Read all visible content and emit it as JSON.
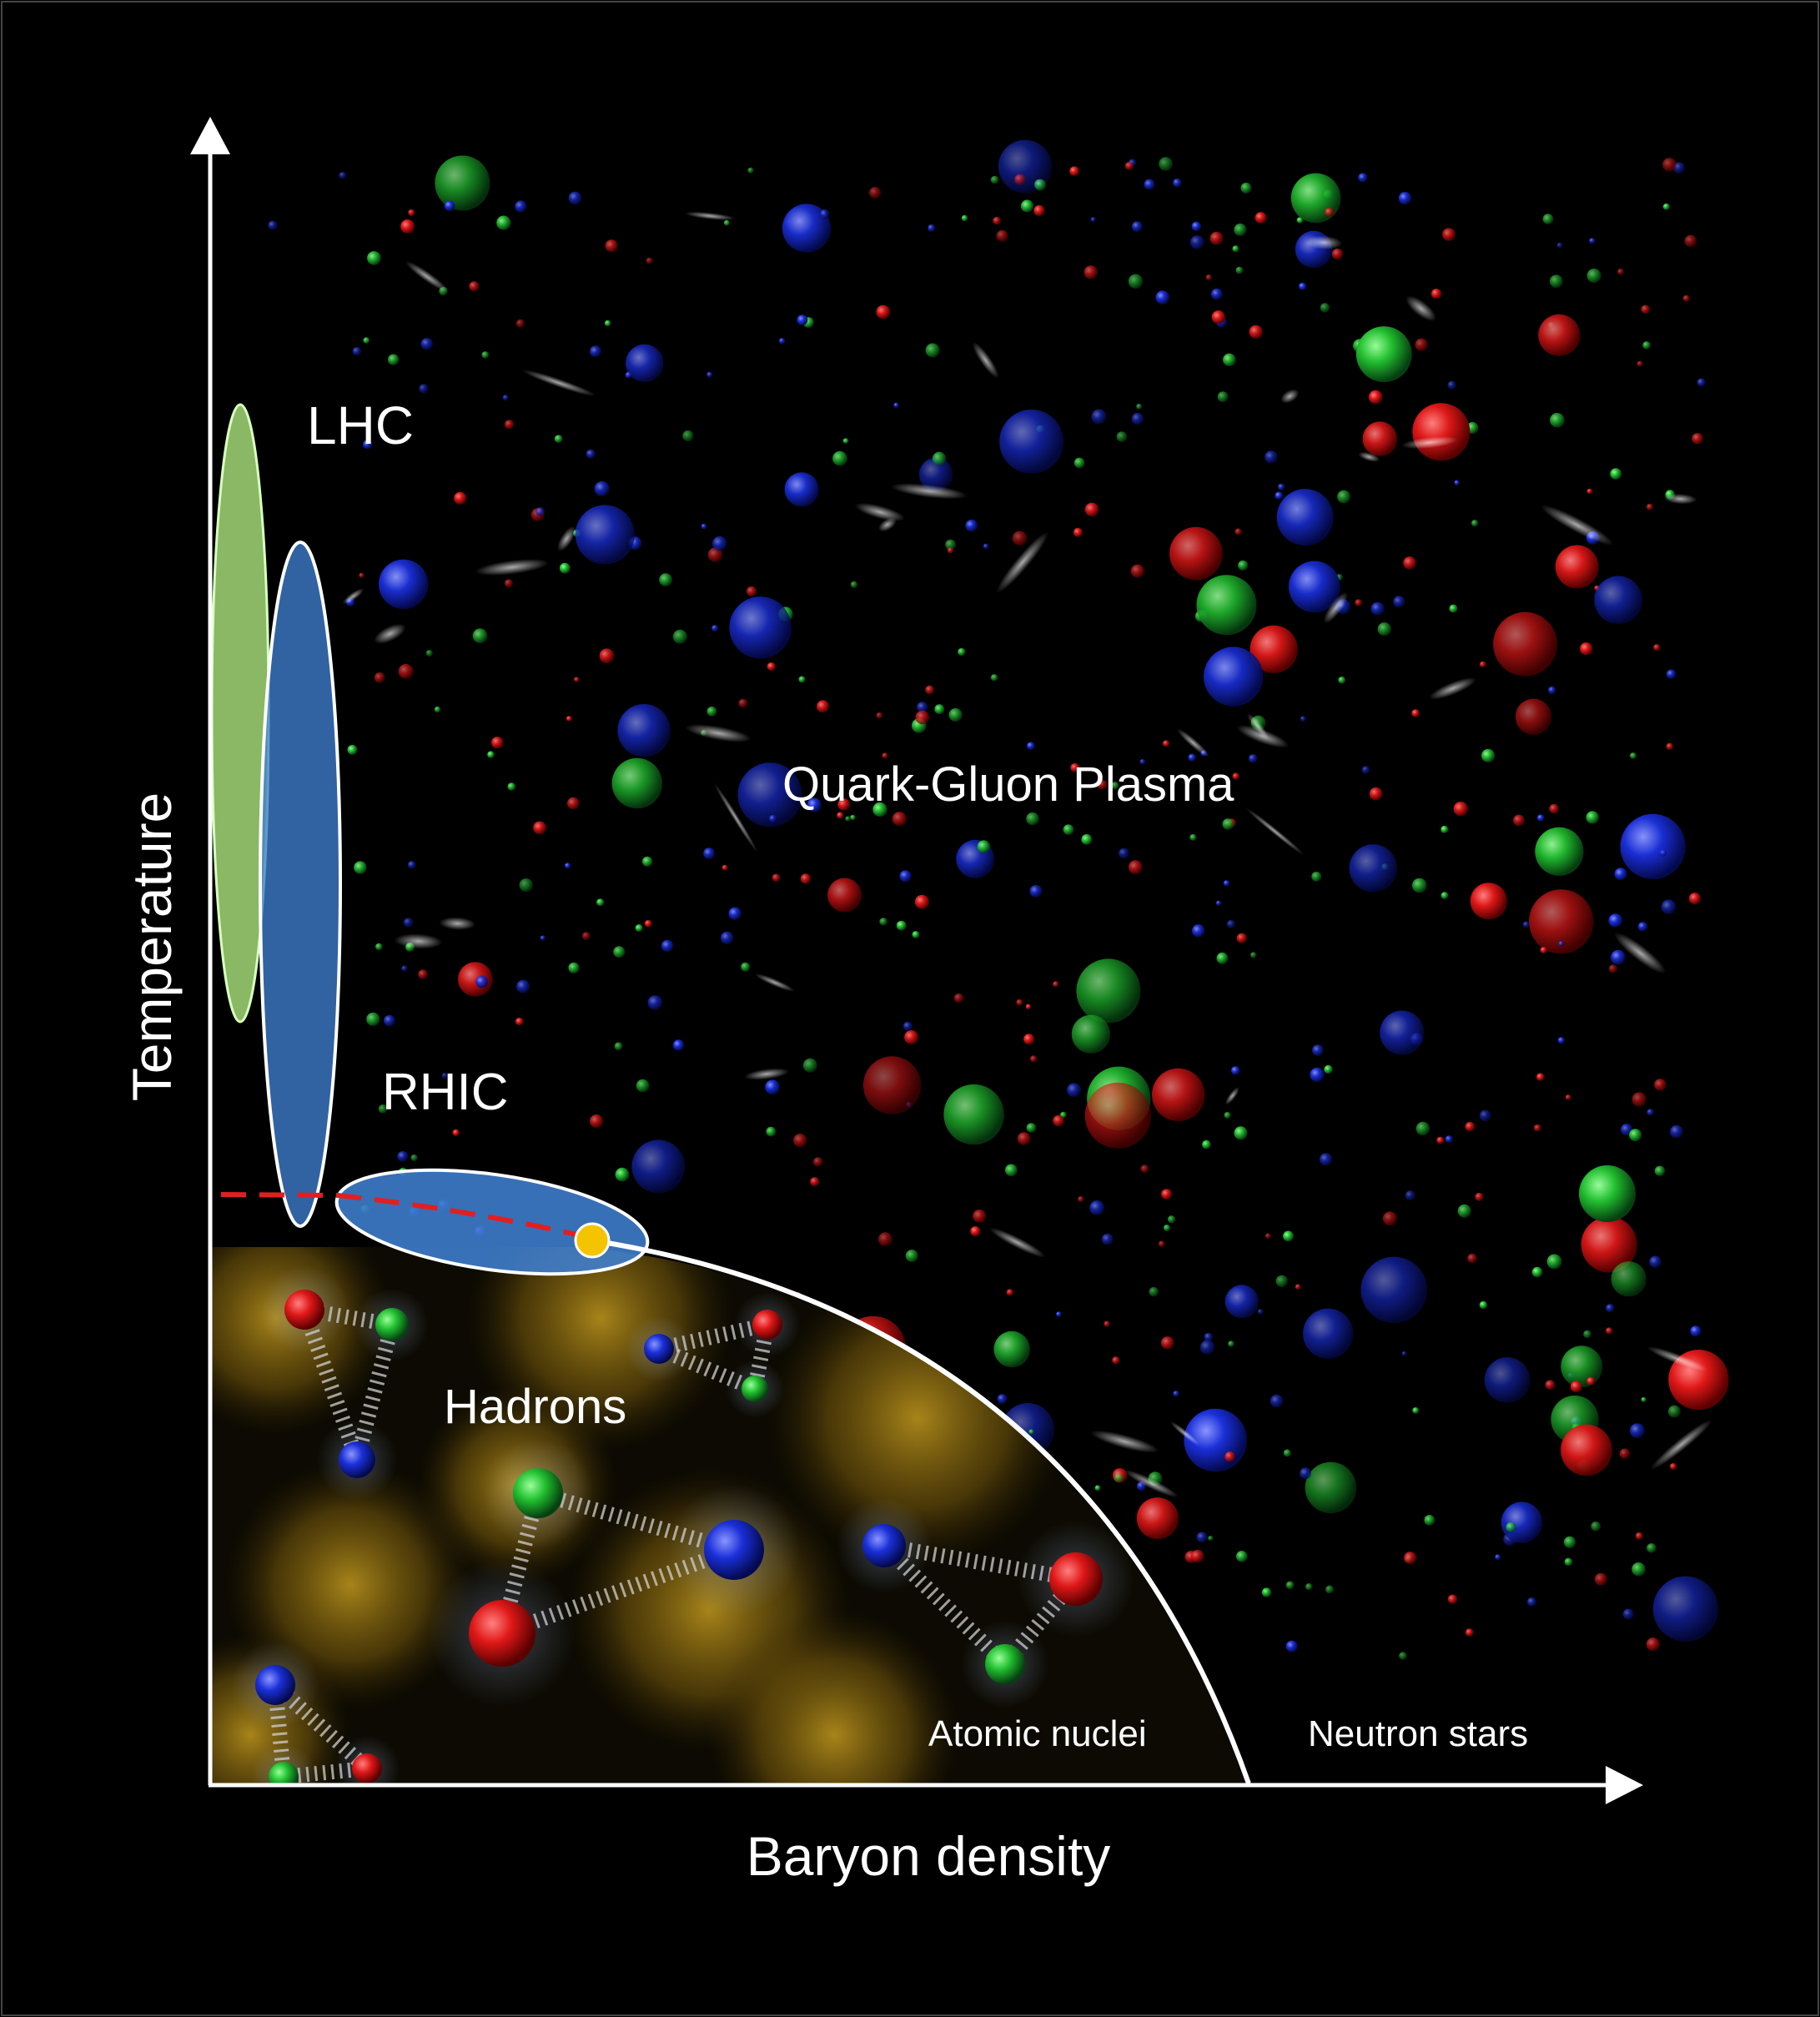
{
  "axes": {
    "x_label": "Baryon density",
    "y_label": "Temperature"
  },
  "regions": {
    "lhc": "LHC",
    "rhic": "RHIC",
    "qgp": "Quark-Gluon Plasma",
    "hadrons": "Hadrons",
    "atomic_nuclei": "Atomic nuclei",
    "neutron_stars": "Neutron stars"
  },
  "colors": {
    "background": "#000000",
    "lhc_fill": "#a8e07a",
    "rhic_fill": "#3f7fd0",
    "phase_boundary": "#ffffff",
    "crossover_dash": "#e02020",
    "critical_point": "#f5c400",
    "hadron_glow": "#8a6a10",
    "quark_red": "#e01818",
    "quark_green": "#22c030",
    "quark_blue": "#1a2fd8"
  }
}
